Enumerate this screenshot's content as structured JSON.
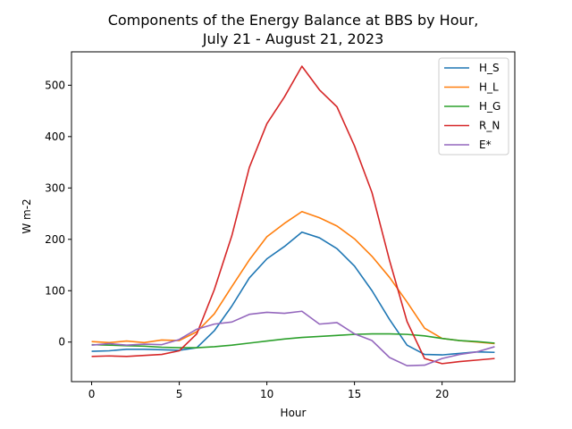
{
  "chart_data": {
    "type": "line",
    "title": "Components of the Energy Balance at BBS by Hour,",
    "subtitle": "July 21 - August 21, 2023",
    "xlabel": "Hour",
    "ylabel": "W m-2",
    "xlim": [
      -1.15,
      24.15
    ],
    "ylim": [
      -77,
      565
    ],
    "xticks": [
      0,
      5,
      10,
      15,
      20
    ],
    "yticks": [
      0,
      100,
      200,
      300,
      400,
      500
    ],
    "grid": false,
    "legend_position": "top-right",
    "x": [
      0,
      1,
      2,
      3,
      4,
      5,
      6,
      7,
      8,
      9,
      10,
      11,
      12,
      13,
      14,
      15,
      16,
      17,
      18,
      19,
      20,
      21,
      22,
      23
    ],
    "series": [
      {
        "name": "H_S",
        "color": "#1f77b4",
        "values": [
          -18,
          -17,
          -14,
          -14,
          -15,
          -16,
          -11,
          22,
          70,
          125,
          162,
          186,
          214,
          203,
          182,
          148,
          100,
          44,
          -6,
          -24,
          -25,
          -22,
          -19,
          -20
        ]
      },
      {
        "name": "H_L",
        "color": "#ff7f0e",
        "values": [
          1,
          -1,
          2,
          -1,
          4,
          3,
          20,
          55,
          108,
          160,
          205,
          231,
          254,
          242,
          226,
          201,
          167,
          126,
          78,
          27,
          7,
          3,
          0,
          -3
        ]
      },
      {
        "name": "H_G",
        "color": "#2ca02c",
        "values": [
          -5,
          -6,
          -7,
          -8,
          -10,
          -11,
          -11,
          -9,
          -6,
          -2,
          2,
          6,
          9,
          11,
          13,
          15,
          16,
          16,
          15,
          12,
          7,
          3,
          1,
          -2
        ]
      },
      {
        "name": "R_N",
        "color": "#d62728",
        "values": [
          -28,
          -27,
          -28,
          -26,
          -24,
          -17,
          16,
          102,
          207,
          340,
          425,
          477,
          537,
          491,
          458,
          382,
          291,
          159,
          40,
          -32,
          -42,
          -38,
          -35,
          -32
        ]
      },
      {
        "name": "E*",
        "color": "#9467bd",
        "values": [
          -6,
          -3,
          -6,
          -4,
          -5,
          5,
          25,
          35,
          39,
          54,
          58,
          56,
          60,
          35,
          38,
          16,
          3,
          -30,
          -46,
          -45,
          -32,
          -24,
          -19,
          -9
        ]
      }
    ]
  }
}
